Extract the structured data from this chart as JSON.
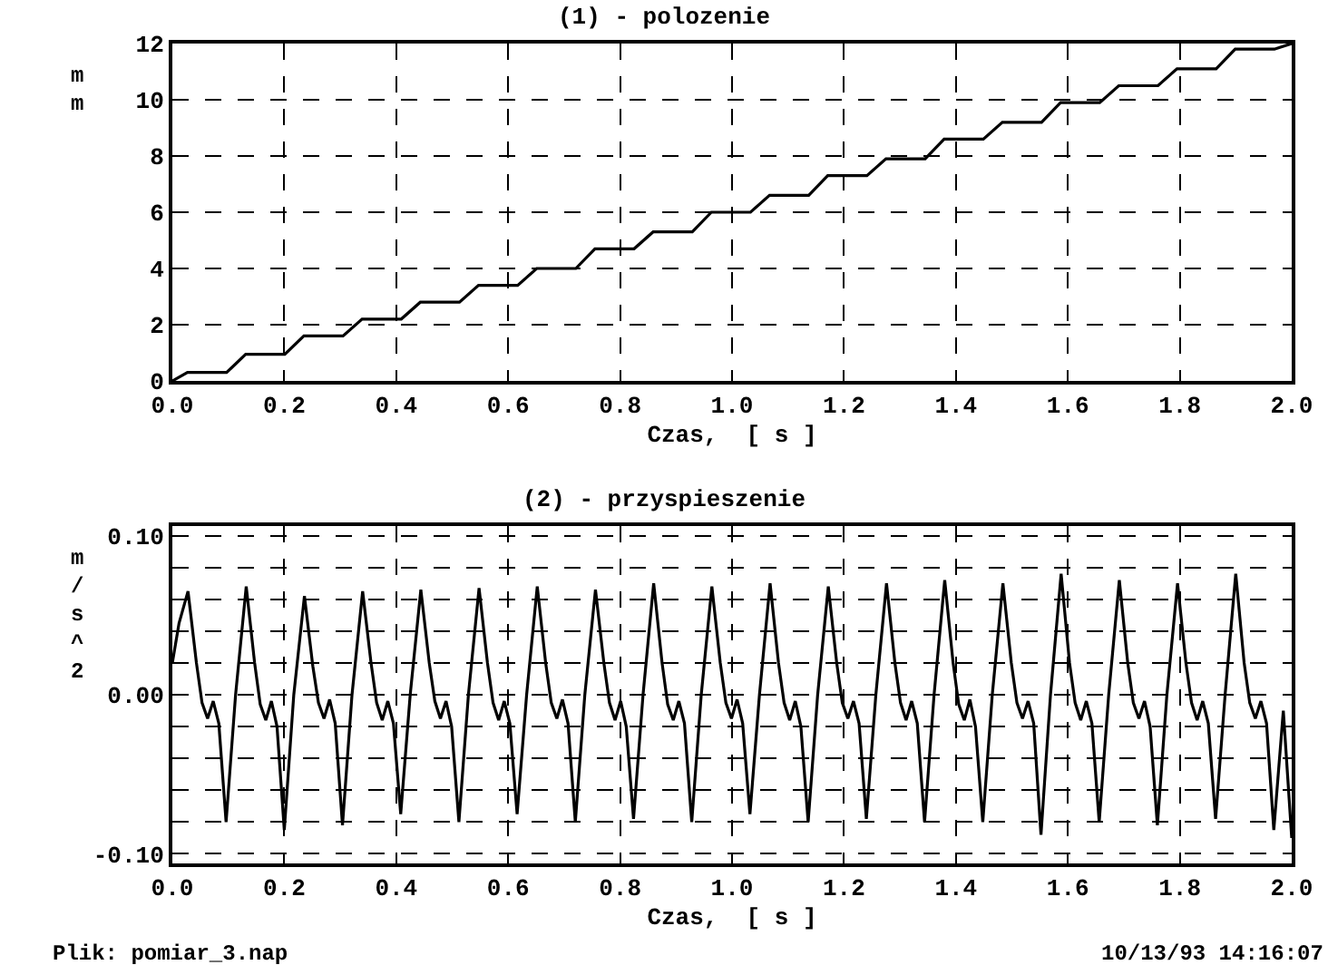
{
  "chart_data": [
    {
      "type": "line",
      "title": "(1) - polozenie",
      "xlabel": "Czas,  [ s ]",
      "ylabel": "mm",
      "xlim": [
        0,
        2
      ],
      "ylim": [
        0,
        12
      ],
      "xticks": [
        {
          "value": 0,
          "label": "0.0"
        },
        {
          "value": 0.2,
          "label": "0.2"
        },
        {
          "value": 0.4,
          "label": "0.4"
        },
        {
          "value": 0.6,
          "label": "0.6"
        },
        {
          "value": 0.8,
          "label": "0.8"
        },
        {
          "value": 1,
          "label": "1.0"
        },
        {
          "value": 1.2,
          "label": "1.2"
        },
        {
          "value": 1.4,
          "label": "1.4"
        },
        {
          "value": 1.6,
          "label": "1.6"
        },
        {
          "value": 1.8,
          "label": "1.8"
        },
        {
          "value": 2,
          "label": "2.0"
        }
      ],
      "yticks": [
        0,
        2,
        4,
        6,
        8,
        10,
        12
      ],
      "grid": true,
      "x": [
        0,
        0.027,
        0.097,
        0.131,
        0.201,
        0.235,
        0.305,
        0.339,
        0.409,
        0.443,
        0.513,
        0.547,
        0.617,
        0.651,
        0.721,
        0.755,
        0.825,
        0.859,
        0.929,
        0.963,
        1.033,
        1.067,
        1.137,
        1.171,
        1.241,
        1.275,
        1.345,
        1.379,
        1.449,
        1.483,
        1.553,
        1.587,
        1.657,
        1.691,
        1.761,
        1.795,
        1.865,
        1.899,
        1.969,
        2.0
      ],
      "series": [
        {
          "color": "#000000",
          "values": [
            0,
            0.3,
            0.3,
            0.95,
            0.95,
            1.6,
            1.6,
            2.2,
            2.2,
            2.8,
            2.8,
            3.4,
            3.4,
            4.0,
            4.0,
            4.7,
            4.7,
            5.3,
            5.3,
            6.0,
            6.0,
            6.6,
            6.6,
            7.3,
            7.3,
            7.9,
            7.9,
            8.6,
            8.6,
            9.2,
            9.2,
            9.9,
            9.9,
            10.5,
            10.5,
            11.1,
            11.1,
            11.8,
            11.8,
            12.0
          ]
        }
      ]
    },
    {
      "type": "line",
      "title": "(2) - przyspieszenie",
      "xlabel": "Czas,  [ s ]",
      "ylabel": "m/s^2",
      "xlim": [
        0,
        2
      ],
      "ylim": [
        -0.106,
        0.106
      ],
      "xticks": [
        {
          "value": 0,
          "label": "0.0"
        },
        {
          "value": 0.2,
          "label": "0.2"
        },
        {
          "value": 0.4,
          "label": "0.4"
        },
        {
          "value": 0.6,
          "label": "0.6"
        },
        {
          "value": 0.8,
          "label": "0.8"
        },
        {
          "value": 1,
          "label": "1.0"
        },
        {
          "value": 1.2,
          "label": "1.2"
        },
        {
          "value": 1.4,
          "label": "1.4"
        },
        {
          "value": 1.6,
          "label": "1.6"
        },
        {
          "value": 1.8,
          "label": "1.8"
        },
        {
          "value": 2,
          "label": "2.0"
        }
      ],
      "yticks": [
        {
          "value": -0.1,
          "label": "-0.10"
        },
        {
          "value": -0.08,
          "label": null
        },
        {
          "value": -0.06,
          "label": null
        },
        {
          "value": -0.04,
          "label": null
        },
        {
          "value": -0.02,
          "label": null
        },
        {
          "value": 0,
          "label": "0.00"
        },
        {
          "value": 0.02,
          "label": null
        },
        {
          "value": 0.04,
          "label": null
        },
        {
          "value": 0.06,
          "label": null
        },
        {
          "value": 0.08,
          "label": null
        },
        {
          "value": 0.1,
          "label": "0.10"
        }
      ],
      "grid": true,
      "annotations": [
        "Plik: pomiar_3.nap",
        "10/13/93 14:16:07"
      ],
      "x": [
        0,
        0.012,
        0.028,
        0.043,
        0.053,
        0.063,
        0.073,
        0.083,
        0.096,
        0.113,
        0.132,
        0.147,
        0.157,
        0.167,
        0.177,
        0.187,
        0.2,
        0.217,
        0.236,
        0.251,
        0.261,
        0.271,
        0.281,
        0.291,
        0.304,
        0.321,
        0.34,
        0.355,
        0.365,
        0.375,
        0.385,
        0.395,
        0.408,
        0.425,
        0.444,
        0.459,
        0.469,
        0.479,
        0.489,
        0.499,
        0.512,
        0.529,
        0.548,
        0.563,
        0.573,
        0.583,
        0.593,
        0.603,
        0.616,
        0.633,
        0.652,
        0.667,
        0.677,
        0.687,
        0.697,
        0.707,
        0.72,
        0.737,
        0.756,
        0.771,
        0.781,
        0.791,
        0.801,
        0.811,
        0.824,
        0.841,
        0.86,
        0.875,
        0.885,
        0.895,
        0.905,
        0.915,
        0.928,
        0.945,
        0.964,
        0.979,
        0.989,
        0.999,
        1.009,
        1.019,
        1.032,
        1.049,
        1.068,
        1.083,
        1.093,
        1.103,
        1.113,
        1.123,
        1.136,
        1.153,
        1.172,
        1.187,
        1.197,
        1.207,
        1.217,
        1.227,
        1.24,
        1.257,
        1.276,
        1.291,
        1.301,
        1.311,
        1.321,
        1.331,
        1.344,
        1.361,
        1.38,
        1.395,
        1.405,
        1.415,
        1.425,
        1.435,
        1.448,
        1.465,
        1.484,
        1.499,
        1.509,
        1.519,
        1.529,
        1.539,
        1.552,
        1.569,
        1.588,
        1.603,
        1.613,
        1.623,
        1.633,
        1.643,
        1.656,
        1.673,
        1.692,
        1.707,
        1.717,
        1.727,
        1.737,
        1.747,
        1.76,
        1.777,
        1.796,
        1.811,
        1.821,
        1.831,
        1.841,
        1.851,
        1.864,
        1.881,
        1.9,
        1.915,
        1.925,
        1.935,
        1.945,
        1.955,
        1.968,
        1.985,
        2.0
      ],
      "series": [
        {
          "color": "#000000",
          "values": [
            0.02,
            0.045,
            0.065,
            0.02,
            -0.005,
            -0.015,
            -0.004,
            -0.018,
            -0.08,
            0.0,
            0.068,
            0.02,
            -0.006,
            -0.016,
            -0.004,
            -0.02,
            -0.085,
            0.0,
            0.062,
            0.018,
            -0.005,
            -0.015,
            -0.003,
            -0.018,
            -0.082,
            0.0,
            0.065,
            0.02,
            -0.005,
            -0.016,
            -0.004,
            -0.018,
            -0.075,
            0.0,
            0.066,
            0.02,
            -0.004,
            -0.015,
            -0.004,
            -0.02,
            -0.08,
            0.0,
            0.067,
            0.02,
            -0.005,
            -0.016,
            -0.004,
            -0.018,
            -0.075,
            0.0,
            0.068,
            0.02,
            -0.005,
            -0.015,
            -0.003,
            -0.018,
            -0.08,
            0.0,
            0.066,
            0.02,
            -0.005,
            -0.016,
            -0.004,
            -0.02,
            -0.078,
            0.0,
            0.07,
            0.02,
            -0.006,
            -0.016,
            -0.004,
            -0.018,
            -0.08,
            0.0,
            0.068,
            0.02,
            -0.005,
            -0.015,
            -0.003,
            -0.018,
            -0.075,
            0.0,
            0.07,
            0.02,
            -0.005,
            -0.016,
            -0.004,
            -0.02,
            -0.08,
            0.0,
            0.068,
            0.02,
            -0.005,
            -0.015,
            -0.004,
            -0.018,
            -0.078,
            0.0,
            0.07,
            0.02,
            -0.005,
            -0.016,
            -0.004,
            -0.018,
            -0.08,
            0.0,
            0.072,
            0.02,
            -0.006,
            -0.016,
            -0.003,
            -0.02,
            -0.08,
            0.0,
            0.07,
            0.02,
            -0.005,
            -0.015,
            -0.004,
            -0.018,
            -0.088,
            0.0,
            0.076,
            0.02,
            -0.005,
            -0.016,
            -0.004,
            -0.018,
            -0.08,
            0.0,
            0.072,
            0.02,
            -0.005,
            -0.015,
            -0.004,
            -0.02,
            -0.082,
            0.0,
            0.07,
            0.02,
            -0.005,
            -0.016,
            -0.004,
            -0.018,
            -0.078,
            0.0,
            0.076,
            0.02,
            -0.005,
            -0.015,
            -0.004,
            -0.018,
            -0.085,
            -0.01,
            -0.09
          ]
        }
      ]
    }
  ]
}
